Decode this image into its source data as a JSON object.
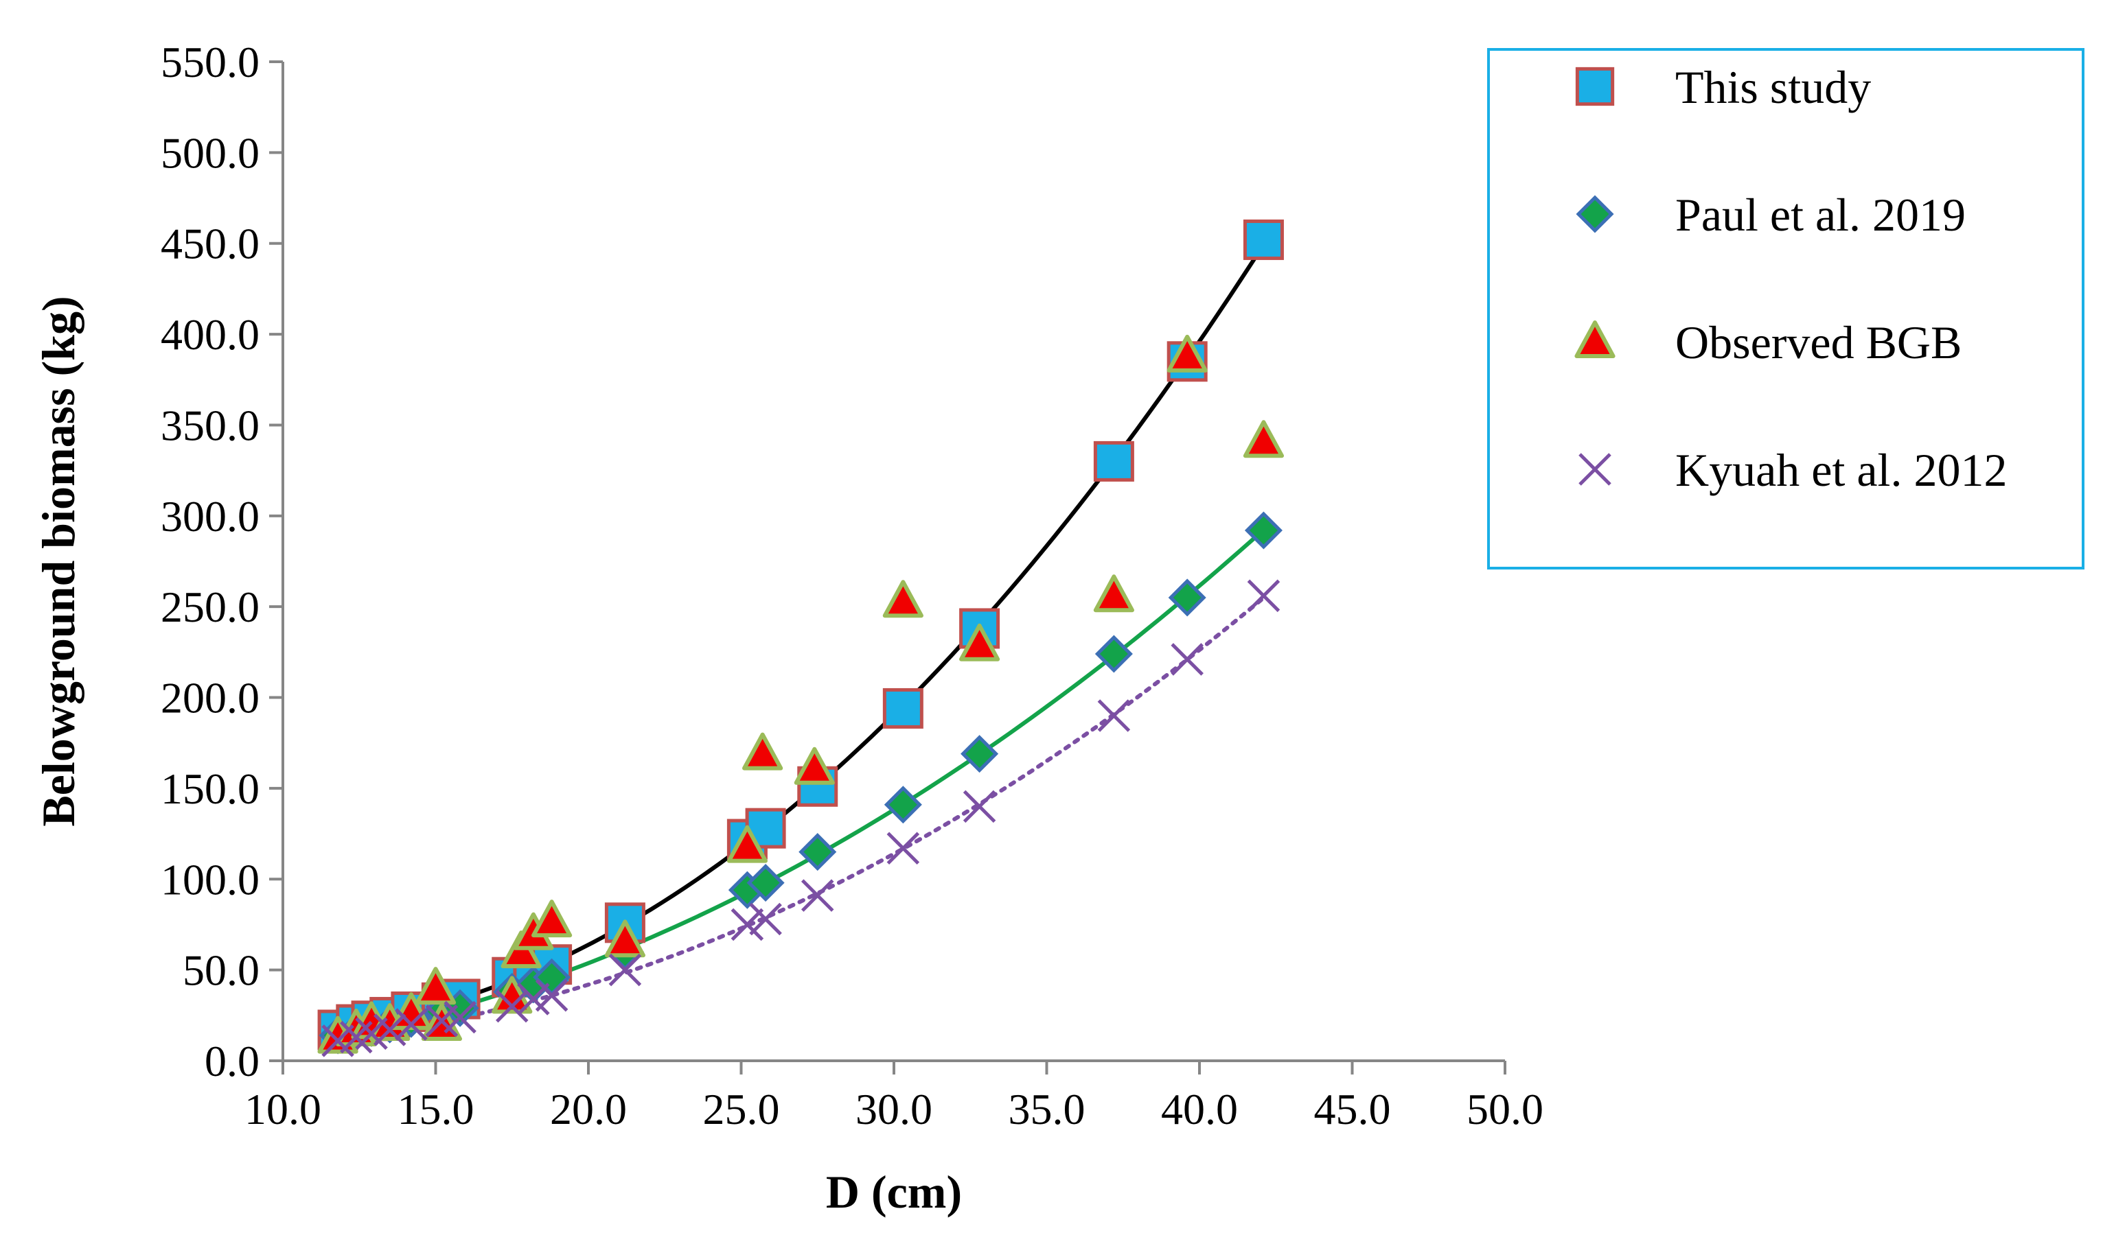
{
  "chart_data": {
    "type": "scatter",
    "title": "",
    "xlabel": "D (cm)",
    "ylabel": "Belowground biomass (kg)",
    "xlim": [
      10,
      50
    ],
    "ylim": [
      0,
      550
    ],
    "x_ticks": [
      "10.0",
      "15.0",
      "20.0",
      "25.0",
      "30.0",
      "35.0",
      "40.0",
      "45.0",
      "50.0"
    ],
    "y_ticks": [
      "0.0",
      "50.0",
      "100.0",
      "150.0",
      "200.0",
      "250.0",
      "300.0",
      "350.0",
      "400.0",
      "450.0",
      "500.0",
      "550.0"
    ],
    "x_tick_values": [
      10,
      15,
      20,
      25,
      30,
      35,
      40,
      45,
      50
    ],
    "y_tick_values": [
      0,
      50,
      100,
      150,
      200,
      250,
      300,
      350,
      400,
      450,
      500,
      550
    ],
    "legend_position": "top-right",
    "series": [
      {
        "name": "This study",
        "marker": "square",
        "fill": "#1AAFE6",
        "stroke": "#C0504D",
        "trendline": {
          "style": "solid",
          "color": "#000000"
        },
        "points": [
          [
            11.8,
            17
          ],
          [
            12.4,
            20
          ],
          [
            12.9,
            22
          ],
          [
            13.5,
            24
          ],
          [
            14.2,
            27
          ],
          [
            15.2,
            32
          ],
          [
            15.8,
            34
          ],
          [
            17.5,
            46
          ],
          [
            18.2,
            50
          ],
          [
            18.8,
            53
          ],
          [
            21.2,
            76
          ],
          [
            25.2,
            122
          ],
          [
            25.8,
            128
          ],
          [
            27.5,
            151
          ],
          [
            30.3,
            194
          ],
          [
            32.8,
            238
          ],
          [
            37.2,
            330
          ],
          [
            39.6,
            385
          ],
          [
            42.1,
            452
          ]
        ]
      },
      {
        "name": "Paul et al. 2019",
        "marker": "diamond",
        "fill": "#13A34A",
        "stroke": "#3C6FB5",
        "trendline": {
          "style": "solid",
          "color": "#13A34A"
        },
        "points": [
          [
            11.8,
            14
          ],
          [
            12.4,
            16
          ],
          [
            12.9,
            18
          ],
          [
            13.5,
            20
          ],
          [
            14.2,
            23
          ],
          [
            15.2,
            27
          ],
          [
            15.8,
            29
          ],
          [
            17.5,
            38
          ],
          [
            18.2,
            42
          ],
          [
            18.8,
            46
          ],
          [
            21.2,
            60
          ],
          [
            25.2,
            94
          ],
          [
            25.8,
            98
          ],
          [
            27.5,
            115
          ],
          [
            30.3,
            141
          ],
          [
            32.8,
            169
          ],
          [
            37.2,
            224
          ],
          [
            39.6,
            255
          ],
          [
            42.1,
            292
          ]
        ]
      },
      {
        "name": "Observed BGB",
        "marker": "triangle",
        "fill": "#F00000",
        "stroke": "#9BBB59",
        "points": [
          [
            11.8,
            13
          ],
          [
            12.4,
            17
          ],
          [
            12.9,
            21
          ],
          [
            13.5,
            20
          ],
          [
            14.2,
            26
          ],
          [
            15.0,
            40
          ],
          [
            15.2,
            20
          ],
          [
            17.5,
            35
          ],
          [
            17.8,
            60
          ],
          [
            18.2,
            70
          ],
          [
            18.8,
            77
          ],
          [
            21.2,
            66
          ],
          [
            25.2,
            118
          ],
          [
            25.7,
            169
          ],
          [
            27.4,
            161
          ],
          [
            30.3,
            253
          ],
          [
            32.8,
            229
          ],
          [
            37.2,
            256
          ],
          [
            39.6,
            388
          ],
          [
            42.1,
            341
          ]
        ]
      },
      {
        "name": "Kyuah et al. 2012",
        "marker": "x",
        "fill": "none",
        "stroke": "#7B4FA3",
        "trendline": {
          "style": "dotted",
          "color": "#7B4FA3"
        },
        "points": [
          [
            11.8,
            11
          ],
          [
            12.4,
            13
          ],
          [
            12.9,
            15
          ],
          [
            13.5,
            17
          ],
          [
            14.2,
            20
          ],
          [
            15.2,
            22
          ],
          [
            15.8,
            24
          ],
          [
            17.5,
            30
          ],
          [
            18.2,
            34
          ],
          [
            18.8,
            36
          ],
          [
            21.2,
            50
          ],
          [
            25.2,
            75
          ],
          [
            25.8,
            78
          ],
          [
            27.5,
            91
          ],
          [
            30.3,
            117
          ],
          [
            32.8,
            140
          ],
          [
            37.2,
            190
          ],
          [
            39.6,
            221
          ],
          [
            42.1,
            256
          ]
        ]
      }
    ]
  }
}
